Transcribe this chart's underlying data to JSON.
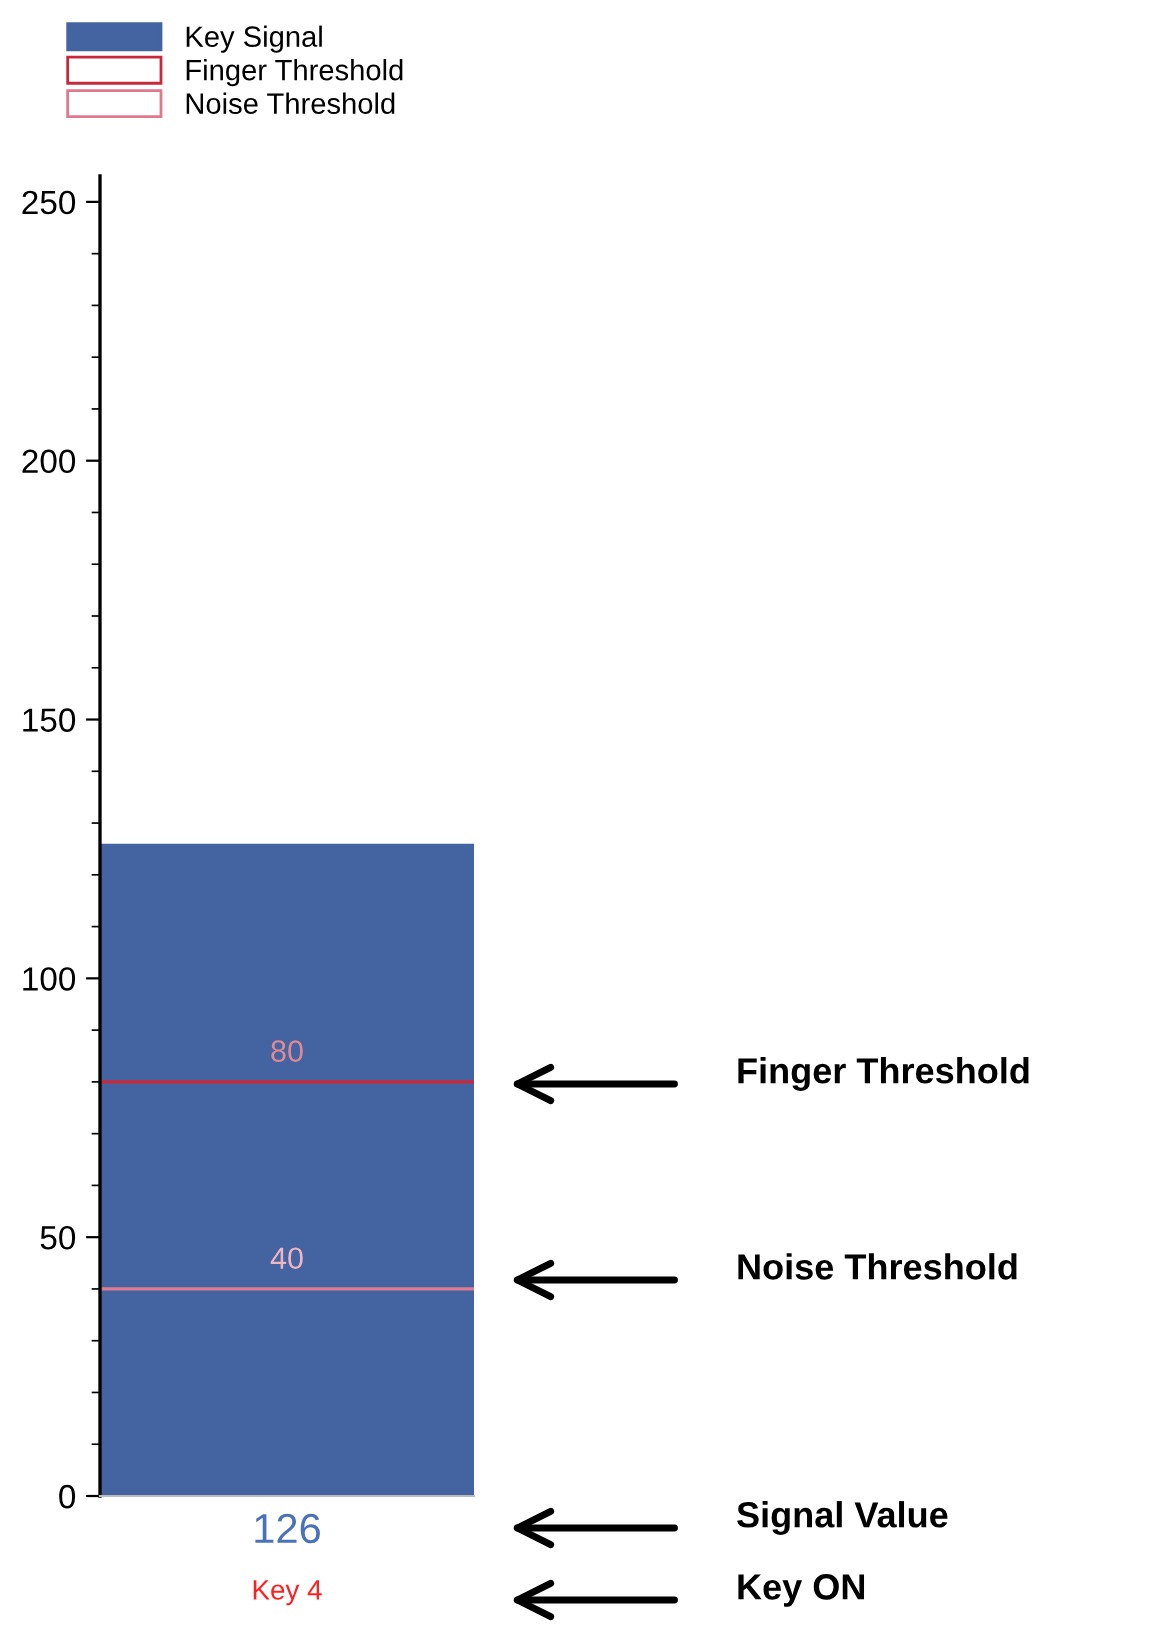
{
  "chart_data": {
    "type": "bar",
    "categories": [
      "Key 4"
    ],
    "series": [
      {
        "name": "Key Signal",
        "color": "#4364a0",
        "values": [
          126
        ]
      }
    ],
    "ylim": [
      0,
      255
    ],
    "yticks": [
      0,
      50,
      100,
      150,
      200,
      250
    ],
    "grid": false,
    "legend": "top left",
    "data_labels": true,
    "ref_lines": [
      {
        "axis": "y",
        "value": 80,
        "label": "80",
        "color": "#c8283c"
      },
      {
        "axis": "y",
        "value": 40,
        "label": "40",
        "color": "#e07890"
      }
    ],
    "annotations": [
      "Finger Threshold",
      "Noise Threshold",
      "Signal Value",
      "Key ON"
    ]
  }
}
